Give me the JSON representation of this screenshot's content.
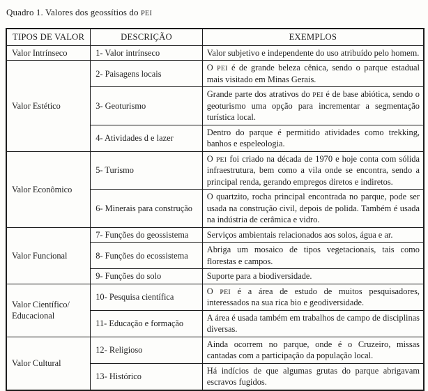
{
  "typography": {
    "small_caps_terms": [
      "PEI"
    ]
  },
  "colors": {
    "text": "#1f1f1f",
    "border": "#1c1c1c",
    "background": "#fdfdfb"
  },
  "caption": "Quadro 1. Valores dos geossítios do PEI",
  "table": {
    "headers": [
      "TIPOS DE VALOR",
      "DESCRIÇÃO",
      "EXEMPLOS"
    ],
    "groups": [
      {
        "tipo": "Valor Intrínseco",
        "rows": [
          {
            "descricao": "1- Valor intrínseco",
            "exemplo": "Valor subjetivo e independente do uso atribuído pelo homem."
          }
        ]
      },
      {
        "tipo": "Valor Estético",
        "rows": [
          {
            "descricao": "2- Paisagens locais",
            "exemplo": "O PEI é de grande beleza cênica, sendo o parque estadual mais visitado em Minas Gerais."
          },
          {
            "descricao": "3- Geoturismo",
            "exemplo": "Grande parte dos atrativos do PEI é de base abiótica, sendo o geoturismo uma opção para incrementar a segmentação turística local."
          },
          {
            "descricao": "4- Atividades d e lazer",
            "exemplo": "Dentro do parque é permitido atividades como trekking, banhos e espeleologia."
          }
        ]
      },
      {
        "tipo": "Valor Econômico",
        "rows": [
          {
            "descricao": "5- Turismo",
            "exemplo": "O PEI foi criado na década de 1970 e hoje conta com sólida infraestrutura, bem como a vila onde se encontra, sendo a principal renda, gerando empregos diretos e indiretos."
          },
          {
            "descricao": "6- Minerais para construção",
            "exemplo": "O quartzito, rocha principal encontrada no parque, pode ser usada na construção civil, depois de polida. Também é usada na indústria de cerâmica e vidro."
          }
        ]
      },
      {
        "tipo": "Valor Funcional",
        "rows": [
          {
            "descricao": "7- Funções do geossistema",
            "exemplo": "Serviços ambientais relacionados aos solos, água e ar."
          },
          {
            "descricao": "8- Funções do ecossistema",
            "exemplo": "Abriga um mosaico de tipos vegetacionais, tais como florestas e campos."
          },
          {
            "descricao": "9- Funções do solo",
            "exemplo": "Suporte para a biodiversidade."
          }
        ]
      },
      {
        "tipo": "Valor Científico/ Educacional",
        "rows": [
          {
            "descricao": "10- Pesquisa científica",
            "exemplo": "O PEI é a área de estudo de muitos pesquisadores, interessados na sua rica bio e geodiversidade."
          },
          {
            "descricao": "11- Educação e formação",
            "exemplo": "A área é usada também em trabalhos de campo de disciplinas diversas."
          }
        ]
      },
      {
        "tipo": "Valor Cultural",
        "rows": [
          {
            "descricao": "12- Religioso",
            "exemplo": "Ainda ocorrem no parque, onde é o Cruzeiro, missas cantadas com a participação da população local."
          },
          {
            "descricao": "13- Histórico",
            "exemplo": "Há indícios de que algumas grutas do parque abrigavam escravos fugidos."
          }
        ]
      }
    ]
  }
}
